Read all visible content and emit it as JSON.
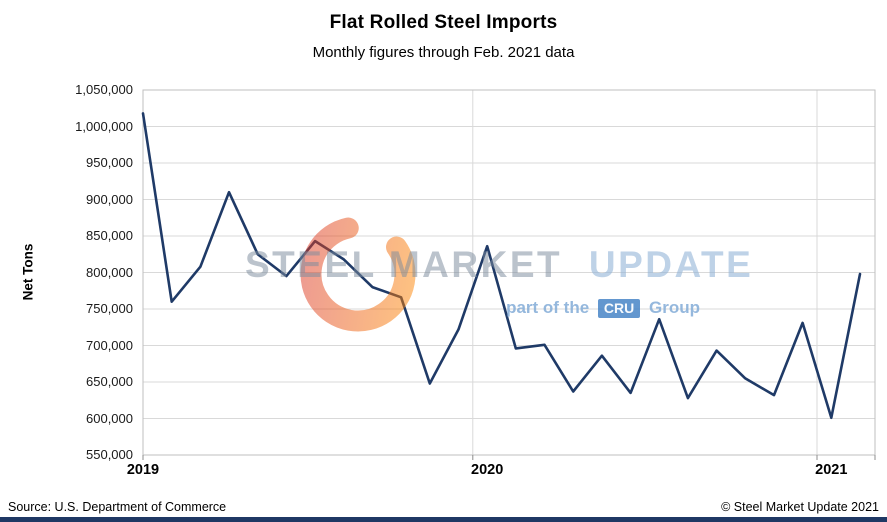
{
  "header": {
    "title": "Flat Rolled Steel Imports",
    "subtitle": "Monthly figures through Feb. 2021 data"
  },
  "chart_data": {
    "type": "line",
    "title": "Flat Rolled Steel Imports",
    "subtitle": "Monthly figures through Feb. 2021 data",
    "ylabel": "Net Tons",
    "ylim": [
      550000,
      1050000
    ],
    "ytick_step": 50000,
    "ytick_labels": [
      "550,000",
      "600,000",
      "650,000",
      "700,000",
      "750,000",
      "800,000",
      "850,000",
      "900,000",
      "950,000",
      "1,000,000",
      "1,050,000"
    ],
    "x_year_labels": [
      "2019",
      "2020",
      "2021"
    ],
    "x": [
      "Jan 2019",
      "Feb 2019",
      "Mar 2019",
      "Apr 2019",
      "May 2019",
      "Jun 2019",
      "Jul 2019",
      "Aug 2019",
      "Sep 2019",
      "Oct 2019",
      "Nov 2019",
      "Dec 2019",
      "Jan 2020",
      "Feb 2020",
      "Mar 2020",
      "Apr 2020",
      "May 2020",
      "Jun 2020",
      "Jul 2020",
      "Aug 2020",
      "Sep 2020",
      "Oct 2020",
      "Nov 2020",
      "Dec 2020",
      "Jan 2021",
      "Feb 2021"
    ],
    "values": [
      1018000,
      760000,
      808000,
      910000,
      825000,
      795000,
      843000,
      818000,
      780000,
      766000,
      648000,
      722000,
      836000,
      696000,
      701000,
      637000,
      686000,
      635000,
      736000,
      628000,
      693000,
      655000,
      632000,
      731000,
      601000,
      798000
    ],
    "line_color": "#1f3a67",
    "grid": true,
    "legend": "none"
  },
  "watermark": {
    "brand_primary": "STEEL MARKET",
    "brand_secondary": "UPDATE",
    "tagline_prefix": "part of the",
    "tagline_badge": "CRU",
    "tagline_suffix": "Group"
  },
  "footer": {
    "source": "Source: U.S. Department of Commerce",
    "copyright": "© Steel Market Update 2021"
  },
  "colors": {
    "accent_bar": "#1f3864",
    "gridline": "#d9d9d9",
    "plot_border": "#bfbfbf"
  }
}
